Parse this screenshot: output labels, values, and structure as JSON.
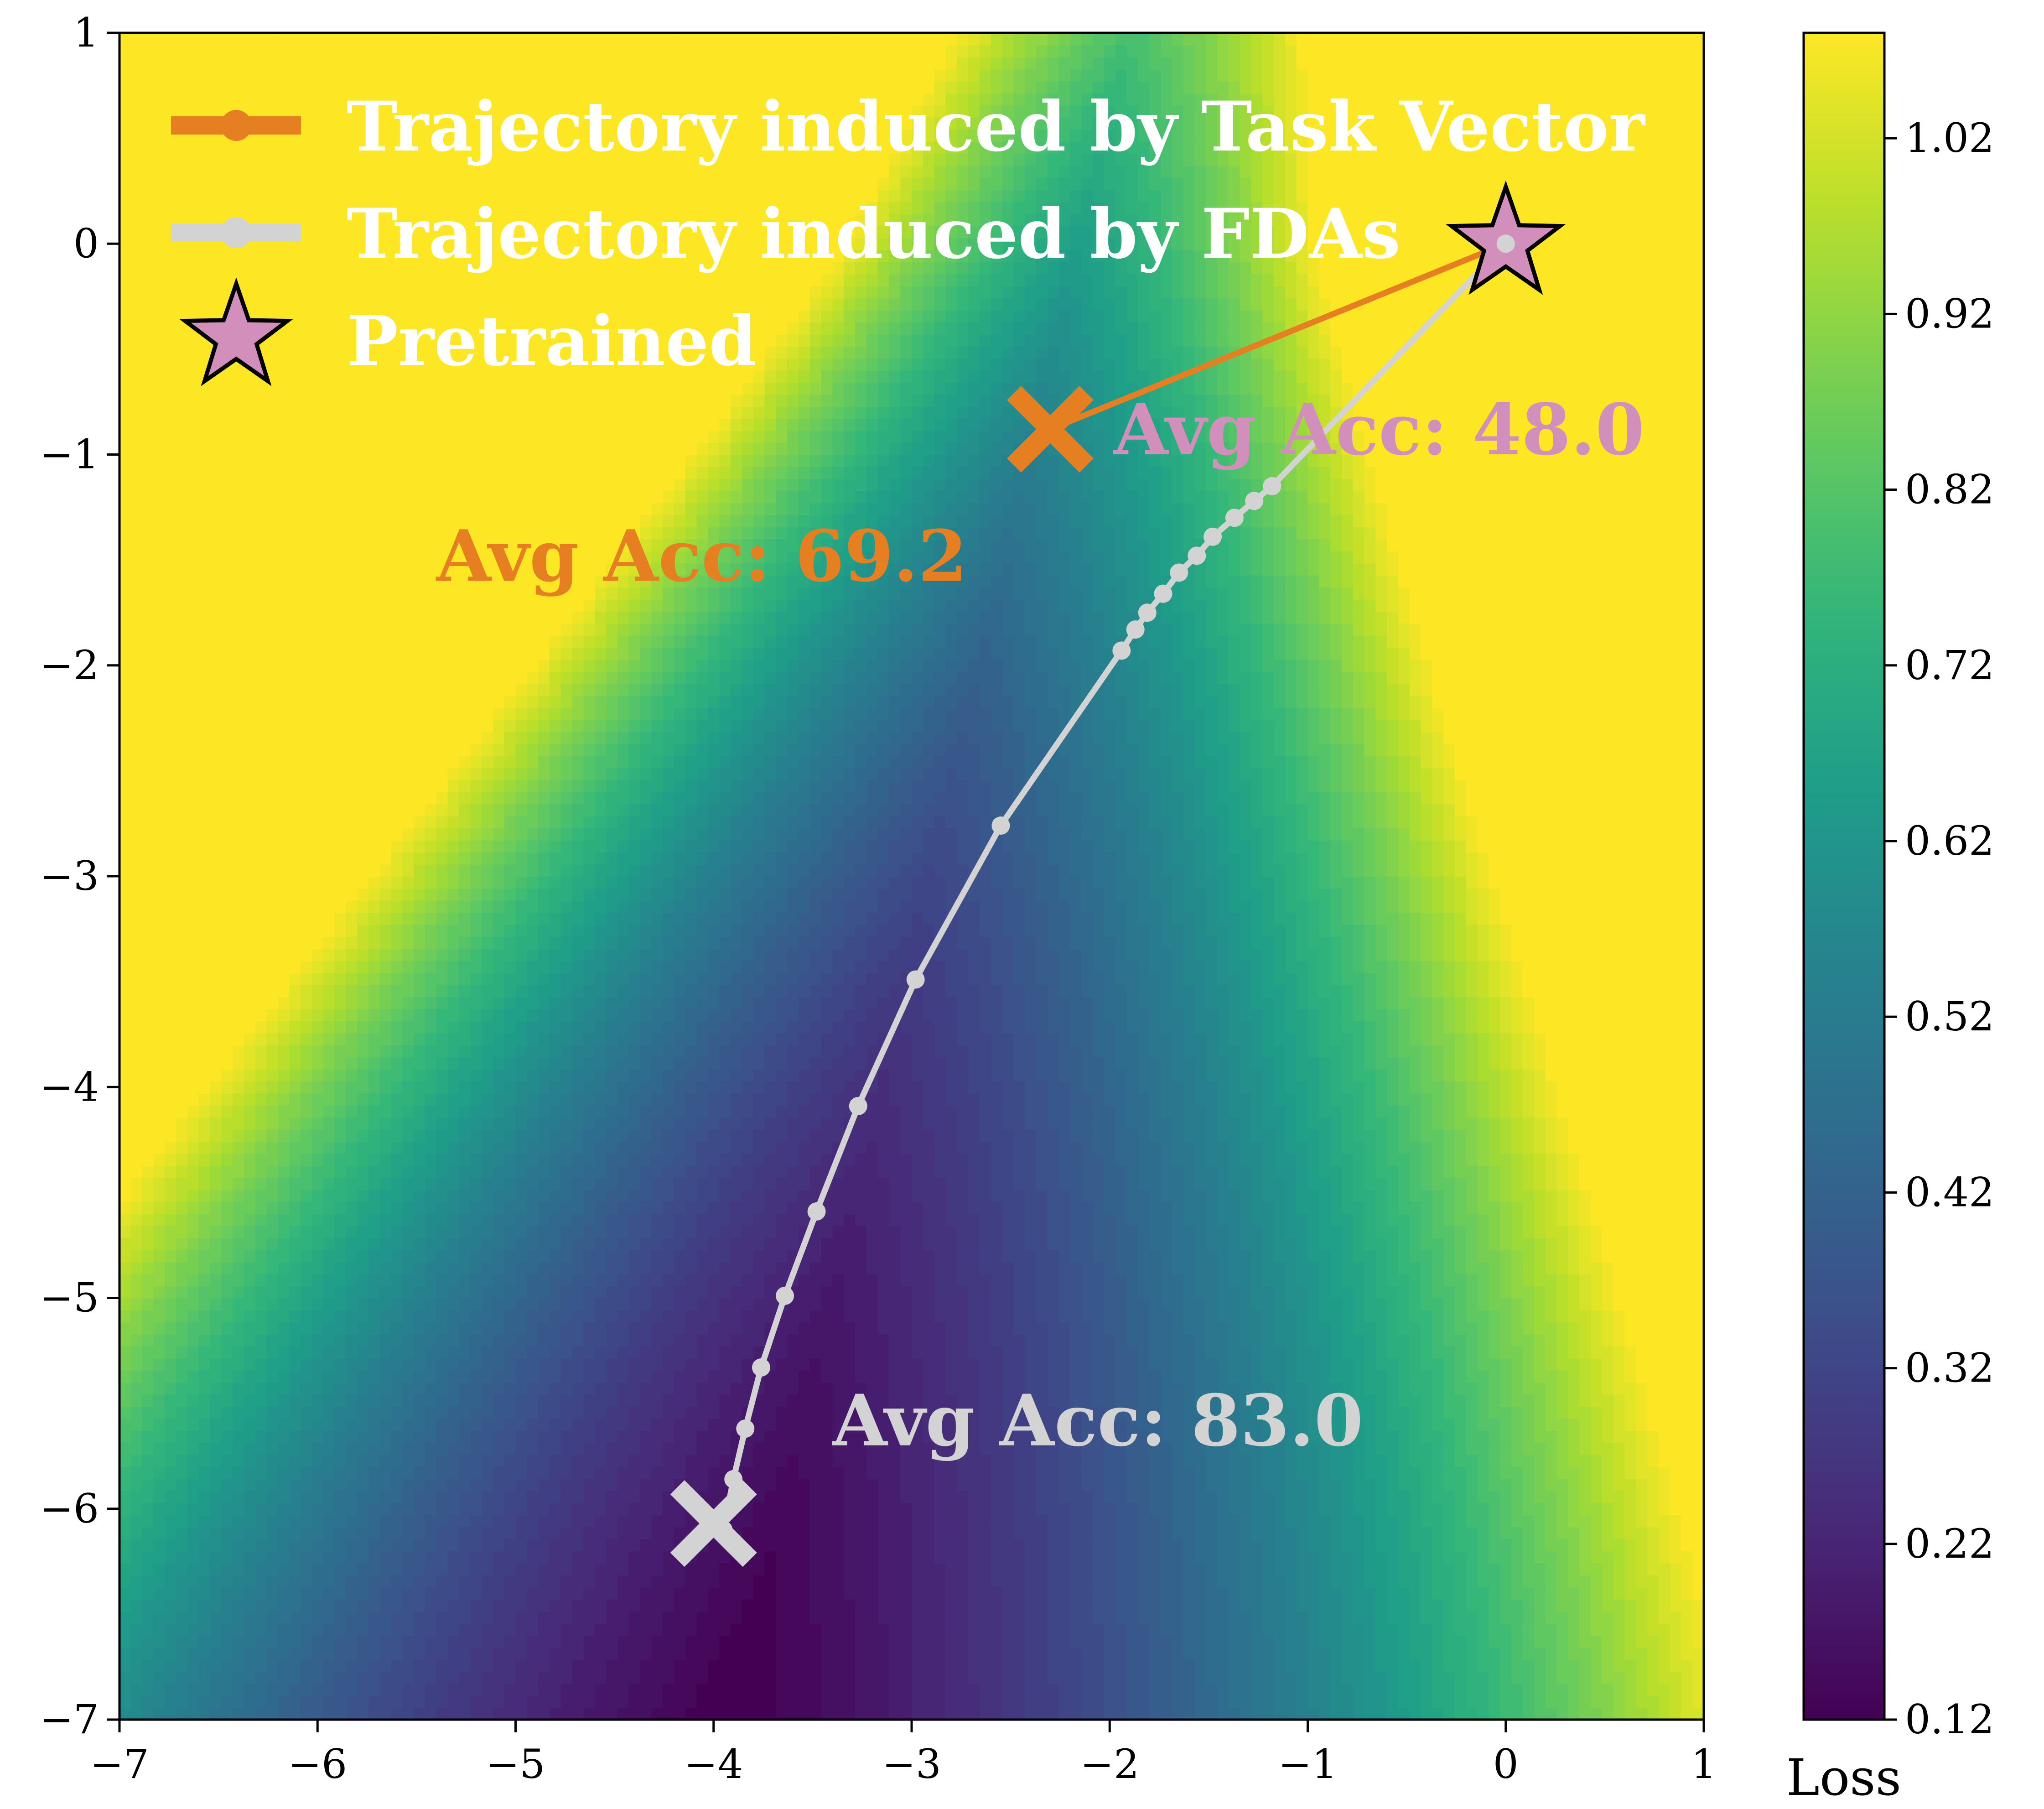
{
  "chart_data": {
    "type": "contour",
    "colormap": "viridis",
    "xlim": [
      -7,
      1
    ],
    "ylim": [
      -7,
      1
    ],
    "x_ticks": [
      "−7",
      "−6",
      "−5",
      "−4",
      "−3",
      "−2",
      "−1",
      "0",
      "1"
    ],
    "y_ticks": [
      "1",
      "0",
      "−1",
      "−2",
      "−3",
      "−4",
      "−5",
      "−6",
      "−7"
    ],
    "x_tick_values": [
      -7,
      -6,
      -5,
      -4,
      -3,
      -2,
      -1,
      0,
      1
    ],
    "y_tick_values": [
      1,
      0,
      -1,
      -2,
      -3,
      -4,
      -5,
      -6,
      -7
    ],
    "colorbar": {
      "label": "Loss",
      "range": [
        0.12,
        1.08
      ],
      "ticks": [
        "1.02",
        "0.92",
        "0.82",
        "0.72",
        "0.62",
        "0.52",
        "0.42",
        "0.32",
        "0.22",
        "0.12"
      ],
      "tick_values": [
        1.02,
        0.92,
        0.82,
        0.72,
        0.62,
        0.52,
        0.42,
        0.32,
        0.22,
        0.12
      ]
    },
    "legend": {
      "placement": "top-left",
      "entries": [
        {
          "label": "Trajectory induced by Task Vector",
          "color": "#e67e22",
          "marker": "circle-line"
        },
        {
          "label": "Trajectory induced by FDAs",
          "color": "#d3d3d3",
          "marker": "circle-line"
        },
        {
          "label": "Pretrained",
          "color": "#d28fbb",
          "marker": "star"
        }
      ]
    },
    "series": [
      {
        "name": "Trajectory induced by Task Vector",
        "color": "#e67e22",
        "points": [
          [
            0,
            0
          ],
          [
            -2.3,
            -0.88
          ]
        ]
      },
      {
        "name": "Trajectory induced by FDAs",
        "color": "#d3d3d3",
        "points": [
          [
            0,
            0
          ],
          [
            -1.18,
            -1.15
          ],
          [
            -1.27,
            -1.22
          ],
          [
            -1.37,
            -1.3
          ],
          [
            -1.48,
            -1.39
          ],
          [
            -1.56,
            -1.48
          ],
          [
            -1.65,
            -1.56
          ],
          [
            -1.73,
            -1.66
          ],
          [
            -1.81,
            -1.75
          ],
          [
            -1.87,
            -1.83
          ],
          [
            -1.94,
            -1.93
          ],
          [
            -2.55,
            -2.76
          ],
          [
            -2.98,
            -3.49
          ],
          [
            -3.27,
            -4.09
          ],
          [
            -3.48,
            -4.59
          ],
          [
            -3.64,
            -4.99
          ],
          [
            -3.76,
            -5.33
          ],
          [
            -3.84,
            -5.62
          ],
          [
            -3.9,
            -5.86
          ],
          [
            -3.95,
            -6.1
          ]
        ]
      }
    ],
    "markers": [
      {
        "name": "Pretrained",
        "shape": "star",
        "x": 0,
        "y": 0,
        "color": "#d28fbb"
      },
      {
        "name": "Task Vector endpoint",
        "shape": "x",
        "x": -2.3,
        "y": -0.88,
        "color": "#e67e22"
      },
      {
        "name": "FDAs endpoint",
        "shape": "x",
        "x": -4.0,
        "y": -6.07,
        "color": "#d3d3d3"
      }
    ],
    "annotations": [
      {
        "text": "Avg Acc: 48.0",
        "x": -1.98,
        "y": -0.88,
        "color": "#d28fbb"
      },
      {
        "text": "Avg Acc: 69.2",
        "x": -5.4,
        "y": -1.48,
        "color": "#e67e22"
      },
      {
        "text": "Avg Acc: 83.0",
        "x": -3.4,
        "y": -5.58,
        "color": "#d3d3d3"
      }
    ]
  }
}
